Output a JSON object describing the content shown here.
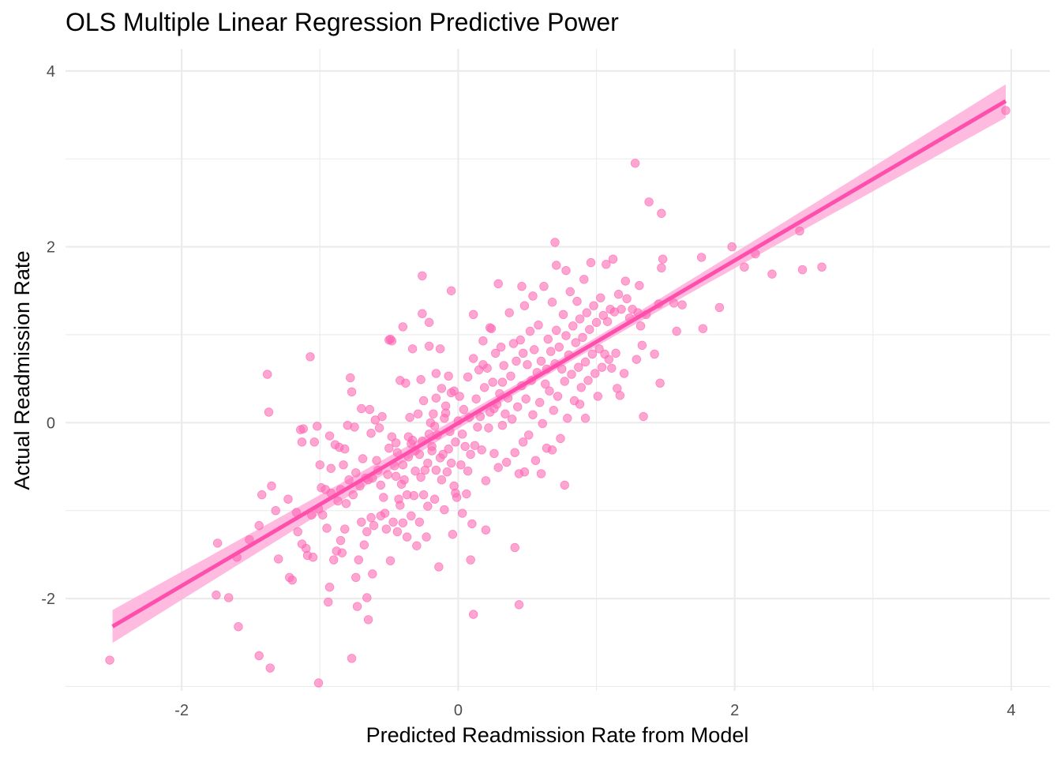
{
  "chart_data": {
    "type": "scatter",
    "title": "OLS Multiple Linear Regression Predictive Power",
    "xlabel": "Predicted Readmission Rate from Model",
    "ylabel": "Actual Readmission Rate",
    "xlim": [
      -2.84,
      4.28
    ],
    "ylim": [
      -3.05,
      4.25
    ],
    "x_ticks": [
      -2,
      0,
      2,
      4
    ],
    "y_ticks": [
      -2,
      0,
      2,
      4
    ],
    "grid": true,
    "colors": {
      "points": "#ff69b4",
      "fit_line": "#ff4fac",
      "confidence_band": "#ffb3dc"
    },
    "fit": {
      "slope": 0.925,
      "intercept": -0.005,
      "x_range": [
        -2.5,
        3.96
      ],
      "band_half_width_ends": 0.19,
      "band_half_width_center": 0.05,
      "band_center_x": 0.7
    },
    "points": [
      [
        -2.52,
        -2.7
      ],
      [
        -1.74,
        -1.37
      ],
      [
        -1.75,
        -1.96
      ],
      [
        -1.66,
        -1.99
      ],
      [
        -1.6,
        -1.53
      ],
      [
        -1.59,
        -2.32
      ],
      [
        -1.51,
        -1.33
      ],
      [
        -1.44,
        -1.17
      ],
      [
        -1.44,
        -2.65
      ],
      [
        -1.42,
        -0.82
      ],
      [
        -1.38,
        0.55
      ],
      [
        -1.37,
        0.12
      ],
      [
        -1.36,
        -2.79
      ],
      [
        -1.35,
        -0.72
      ],
      [
        -1.32,
        -1.0
      ],
      [
        -1.3,
        -1.55
      ],
      [
        -1.23,
        -0.87
      ],
      [
        -1.22,
        -1.76
      ],
      [
        -1.2,
        -1.79
      ],
      [
        -1.17,
        -1.02
      ],
      [
        -1.16,
        -1.24
      ],
      [
        -1.14,
        -0.08
      ],
      [
        -1.13,
        -0.22
      ],
      [
        -1.13,
        -1.38
      ],
      [
        -1.12,
        -0.07
      ],
      [
        -1.1,
        -1.43
      ],
      [
        -1.09,
        -1.51
      ],
      [
        -1.07,
        0.75
      ],
      [
        -1.06,
        -1.05
      ],
      [
        -1.05,
        -1.53
      ],
      [
        -1.04,
        -0.22
      ],
      [
        -1.02,
        -0.04
      ],
      [
        -1.01,
        -0.98
      ],
      [
        -1.01,
        -2.96
      ],
      [
        -1.0,
        -0.48
      ],
      [
        -0.99,
        -0.74
      ],
      [
        -0.98,
        -1.05
      ],
      [
        -0.96,
        -0.76
      ],
      [
        -0.95,
        -1.2
      ],
      [
        -0.94,
        -2.04
      ],
      [
        -0.93,
        -0.15
      ],
      [
        -0.93,
        -1.87
      ],
      [
        -0.92,
        -0.8
      ],
      [
        -0.92,
        -0.52
      ],
      [
        -0.9,
        -1.56
      ],
      [
        -0.89,
        -0.25
      ],
      [
        -0.88,
        -1.46
      ],
      [
        -0.87,
        -0.89
      ],
      [
        -0.86,
        -0.28
      ],
      [
        -0.85,
        -0.76
      ],
      [
        -0.85,
        -1.34
      ],
      [
        -0.84,
        -1.48
      ],
      [
        -0.83,
        -0.48
      ],
      [
        -0.82,
        -0.3
      ],
      [
        -0.82,
        -1.21
      ],
      [
        -0.81,
        -0.92
      ],
      [
        -0.8,
        -0.03
      ],
      [
        -0.79,
        -0.65
      ],
      [
        -0.78,
        0.51
      ],
      [
        -0.77,
        -2.68
      ],
      [
        -0.77,
        0.35
      ],
      [
        -0.76,
        -0.82
      ],
      [
        -0.75,
        -0.05
      ],
      [
        -0.74,
        -1.76
      ],
      [
        -0.74,
        -0.57
      ],
      [
        -0.73,
        -2.09
      ],
      [
        -0.72,
        -1.56
      ],
      [
        -0.71,
        -0.72
      ],
      [
        -0.7,
        0.16
      ],
      [
        -0.7,
        -1.13
      ],
      [
        -0.69,
        -0.41
      ],
      [
        -0.68,
        -1.39
      ],
      [
        -0.67,
        -0.63
      ],
      [
        -0.66,
        -1.24
      ],
      [
        -0.66,
        -1.99
      ],
      [
        -0.65,
        -0.65
      ],
      [
        -0.65,
        -2.24
      ],
      [
        -0.64,
        0.15
      ],
      [
        -0.63,
        -1.08
      ],
      [
        -0.63,
        -0.12
      ],
      [
        -0.62,
        -0.63
      ],
      [
        -0.62,
        -1.72
      ],
      [
        -0.61,
        -1.17
      ],
      [
        -0.6,
        0.03
      ],
      [
        -0.59,
        -0.43
      ],
      [
        -0.58,
        -0.54
      ],
      [
        -0.57,
        -0.06
      ],
      [
        -0.56,
        -1.06
      ],
      [
        -0.56,
        -0.71
      ],
      [
        -0.55,
        0.07
      ],
      [
        -0.54,
        -0.85
      ],
      [
        -0.53,
        -1.03
      ],
      [
        -0.52,
        -1.21
      ],
      [
        -0.51,
        -0.59
      ],
      [
        -0.5,
        -0.29
      ],
      [
        -0.5,
        0.94
      ],
      [
        -0.49,
        -1.57
      ],
      [
        -0.48,
        0.93
      ],
      [
        -0.48,
        -0.16
      ],
      [
        -0.47,
        -1.13
      ],
      [
        -0.46,
        -0.49
      ],
      [
        -0.45,
        -0.61
      ],
      [
        -0.44,
        -0.34
      ],
      [
        -0.44,
        -1.24
      ],
      [
        -0.43,
        -0.87
      ],
      [
        -0.42,
        0.48
      ],
      [
        -0.42,
        -0.94
      ],
      [
        -0.41,
        -0.7
      ],
      [
        -0.4,
        -1.14
      ],
      [
        -0.4,
        -0.48
      ],
      [
        -0.39,
        -0.65
      ],
      [
        -0.38,
        0.45
      ],
      [
        -0.37,
        -1.3
      ],
      [
        -0.37,
        -0.82
      ],
      [
        -0.36,
        -0.39
      ],
      [
        -0.35,
        0.06
      ],
      [
        -0.34,
        -0.24
      ],
      [
        -0.34,
        -1.06
      ],
      [
        -0.33,
        -0.2
      ],
      [
        -0.32,
        -0.83
      ],
      [
        -0.31,
        -0.55
      ],
      [
        -0.31,
        -0.32
      ],
      [
        -0.3,
        -1.4
      ],
      [
        -0.29,
        0.1
      ],
      [
        -0.28,
        -0.36
      ],
      [
        -0.28,
        -1.13
      ],
      [
        -0.27,
        -0.62
      ],
      [
        -0.26,
        -0.21
      ],
      [
        -0.25,
        0.25
      ],
      [
        -0.25,
        -0.82
      ],
      [
        -0.24,
        -0.54
      ],
      [
        -0.23,
        -1.3
      ],
      [
        -0.22,
        -0.46
      ],
      [
        -0.22,
        -0.95
      ],
      [
        -0.21,
        -0.13
      ],
      [
        -0.2,
        0.0
      ],
      [
        -0.19,
        -0.27
      ],
      [
        -0.19,
        -0.32
      ],
      [
        -0.18,
        0.1
      ],
      [
        -0.17,
        -0.87
      ],
      [
        -0.16,
        0.28
      ],
      [
        -0.16,
        -0.54
      ],
      [
        -0.15,
        -0.14
      ],
      [
        -0.14,
        -1.64
      ],
      [
        -0.13,
        -0.4
      ],
      [
        -0.13,
        0.84
      ],
      [
        -0.12,
        -0.65
      ],
      [
        -0.11,
        -0.36
      ],
      [
        -0.1,
        0.05
      ],
      [
        -0.1,
        -0.99
      ],
      [
        -0.09,
        0.19
      ],
      [
        -0.08,
        -0.56
      ],
      [
        -0.07,
        -0.3
      ],
      [
        -0.07,
        0.53
      ],
      [
        -0.06,
        -0.1
      ],
      [
        -0.05,
        -0.46
      ],
      [
        -0.04,
        -1.27
      ],
      [
        -0.03,
        0.36
      ],
      [
        -0.03,
        -0.72
      ],
      [
        -0.02,
        -0.22
      ],
      [
        -0.01,
        -0.85
      ],
      [
        0.0,
        0.02
      ],
      [
        0.01,
        0.3
      ],
      [
        0.02,
        -0.48
      ],
      [
        0.03,
        -0.13
      ],
      [
        0.03,
        -1.03
      ],
      [
        0.04,
        0.15
      ],
      [
        0.05,
        -0.27
      ],
      [
        0.06,
        -0.81
      ],
      [
        0.07,
        0.52
      ],
      [
        0.08,
        0.06
      ],
      [
        0.09,
        -0.36
      ],
      [
        0.1,
        -1.15
      ],
      [
        0.11,
        0.73
      ],
      [
        0.12,
        -0.26
      ],
      [
        0.13,
        0.27
      ],
      [
        0.14,
        -0.05
      ],
      [
        0.15,
        0.6
      ],
      [
        0.16,
        0.07
      ],
      [
        0.17,
        -0.31
      ],
      [
        0.18,
        0.93
      ],
      [
        0.19,
        0.4
      ],
      [
        0.2,
        -0.66
      ],
      [
        0.21,
        0.62
      ],
      [
        0.22,
        -0.06
      ],
      [
        0.23,
        0.12
      ],
      [
        0.24,
        1.07
      ],
      [
        0.25,
        0.46
      ],
      [
        0.26,
        -0.35
      ],
      [
        0.27,
        0.79
      ],
      [
        0.28,
        0.21
      ],
      [
        0.29,
        -0.51
      ],
      [
        0.3,
        0.33
      ],
      [
        0.31,
        0.86
      ],
      [
        0.32,
        -0.03
      ],
      [
        0.33,
        0.65
      ],
      [
        0.34,
        0.1
      ],
      [
        0.35,
        -0.45
      ],
      [
        0.36,
        0.28
      ],
      [
        0.37,
        1.25
      ],
      [
        0.38,
        0.53
      ],
      [
        0.39,
        0.04
      ],
      [
        0.4,
        0.9
      ],
      [
        0.41,
        -0.34
      ],
      [
        0.42,
        0.7
      ],
      [
        0.43,
        0.18
      ],
      [
        0.44,
        -0.58
      ],
      [
        0.45,
        0.94
      ],
      [
        0.46,
        0.42
      ],
      [
        0.47,
        -0.22
      ],
      [
        0.48,
        1.33
      ],
      [
        0.49,
        0.27
      ],
      [
        0.5,
        0.66
      ],
      [
        0.51,
        -0.14
      ],
      [
        0.52,
        1.04
      ],
      [
        0.53,
        0.48
      ],
      [
        0.54,
        0.09
      ],
      [
        0.55,
        0.83
      ],
      [
        0.56,
        -0.43
      ],
      [
        0.57,
        0.57
      ],
      [
        0.58,
        1.11
      ],
      [
        0.59,
        0.23
      ],
      [
        0.6,
        0.7
      ],
      [
        0.61,
        -0.01
      ],
      [
        0.62,
        1.55
      ],
      [
        0.63,
        0.44
      ],
      [
        0.64,
        -0.29
      ],
      [
        0.65,
        0.95
      ],
      [
        0.66,
        0.36
      ],
      [
        0.67,
        0.81
      ],
      [
        0.68,
        1.37
      ],
      [
        0.69,
        0.14
      ],
      [
        0.7,
        0.67
      ],
      [
        0.71,
        1.05
      ],
      [
        0.72,
        0.3
      ],
      [
        0.73,
        0.86
      ],
      [
        0.74,
        -0.18
      ],
      [
        0.75,
        0.61
      ],
      [
        0.76,
        1.23
      ],
      [
        0.77,
        0.47
      ],
      [
        0.78,
        0.99
      ],
      [
        0.79,
        0.05
      ],
      [
        0.8,
        0.77
      ],
      [
        0.81,
        1.49
      ],
      [
        0.82,
        0.55
      ],
      [
        0.83,
        1.1
      ],
      [
        0.84,
        0.25
      ],
      [
        0.85,
        0.91
      ],
      [
        0.86,
        1.38
      ],
      [
        0.87,
        0.63
      ],
      [
        0.88,
        1.18
      ],
      [
        0.89,
        0.4
      ],
      [
        0.9,
        0.97
      ],
      [
        0.91,
        1.63
      ],
      [
        0.92,
        0.69
      ],
      [
        0.93,
        1.25
      ],
      [
        0.94,
        0.48
      ],
      [
        0.95,
        1.06
      ],
      [
        0.96,
        1.82
      ],
      [
        0.97,
        0.78
      ],
      [
        0.98,
        1.33
      ],
      [
        0.99,
        0.56
      ],
      [
        1.0,
        1.14
      ],
      [
        1.01,
        0.3
      ],
      [
        1.02,
        0.84
      ],
      [
        1.03,
        1.42
      ],
      [
        1.04,
        0.63
      ],
      [
        1.05,
        1.22
      ],
      [
        1.06,
        0.78
      ],
      [
        1.07,
        1.8
      ],
      [
        1.08,
        1.15
      ],
      [
        1.09,
        0.72
      ],
      [
        1.1,
        1.29
      ],
      [
        1.11,
        0.62
      ],
      [
        1.12,
        1.86
      ],
      [
        1.13,
        1.26
      ],
      [
        1.14,
        0.79
      ],
      [
        1.15,
        0.39
      ],
      [
        1.16,
        1.46
      ],
      [
        1.17,
        0.31
      ],
      [
        1.18,
        1.29
      ],
      [
        1.2,
        0.56
      ],
      [
        1.21,
        1.61
      ],
      [
        1.22,
        1.41
      ],
      [
        1.24,
        1.19
      ],
      [
        1.26,
        1.29
      ],
      [
        1.28,
        2.95
      ],
      [
        1.29,
        0.72
      ],
      [
        1.3,
        1.25
      ],
      [
        1.31,
        1.56
      ],
      [
        1.32,
        1.1
      ],
      [
        1.33,
        0.88
      ],
      [
        1.34,
        0.07
      ],
      [
        1.36,
        1.23
      ],
      [
        1.38,
        2.51
      ],
      [
        1.42,
        0.78
      ],
      [
        1.45,
        1.35
      ],
      [
        1.46,
        0.45
      ],
      [
        1.47,
        1.76
      ],
      [
        1.47,
        2.38
      ],
      [
        1.48,
        1.86
      ],
      [
        1.56,
        1.36
      ],
      [
        1.58,
        1.04
      ],
      [
        1.62,
        1.34
      ],
      [
        1.76,
        1.88
      ],
      [
        1.77,
        1.07
      ],
      [
        1.89,
        1.31
      ],
      [
        1.98,
        2.0
      ],
      [
        2.07,
        1.77
      ],
      [
        2.15,
        1.92
      ],
      [
        2.27,
        1.69
      ],
      [
        2.47,
        2.18
      ],
      [
        2.49,
        1.74
      ],
      [
        2.63,
        1.77
      ],
      [
        3.96,
        3.55
      ],
      [
        -0.26,
        1.67
      ],
      [
        -0.05,
        1.5
      ],
      [
        -0.26,
        1.24
      ],
      [
        -0.21,
        1.14
      ],
      [
        -0.4,
        1.09
      ],
      [
        -0.49,
        0.95
      ],
      [
        -0.33,
        0.84
      ],
      [
        -0.21,
        0.87
      ],
      [
        0.11,
        1.23
      ],
      [
        0.29,
        1.58
      ],
      [
        0.23,
        1.08
      ],
      [
        0.46,
        1.55
      ],
      [
        0.64,
        0.61
      ],
      [
        0.78,
        1.73
      ],
      [
        0.54,
        1.44
      ],
      [
        0.7,
        2.05
      ],
      [
        0.71,
        1.79
      ],
      [
        0.47,
        0.79
      ],
      [
        -0.16,
        0.56
      ],
      [
        -0.12,
        0.39
      ],
      [
        -0.05,
        0.34
      ],
      [
        0.18,
        0.66
      ],
      [
        0.26,
        0.16
      ],
      [
        0.32,
        0.46
      ],
      [
        0.48,
        -0.56
      ],
      [
        0.6,
        -0.58
      ],
      [
        0.68,
        -0.31
      ],
      [
        0.77,
        -0.71
      ],
      [
        0.88,
        0.21
      ],
      [
        0.92,
        0.05
      ],
      [
        -0.45,
        -0.23
      ],
      [
        -0.36,
        -0.16
      ],
      [
        -0.17,
        -0.04
      ],
      [
        -0.09,
        0.11
      ],
      [
        0.07,
        -0.55
      ],
      [
        0.2,
        -1.22
      ],
      [
        0.41,
        -1.42
      ],
      [
        0.44,
        -2.07
      ],
      [
        0.11,
        -2.18
      ],
      [
        0.09,
        -1.56
      ],
      [
        -0.02,
        -0.8
      ],
      [
        -0.27,
        0.49
      ]
    ]
  }
}
